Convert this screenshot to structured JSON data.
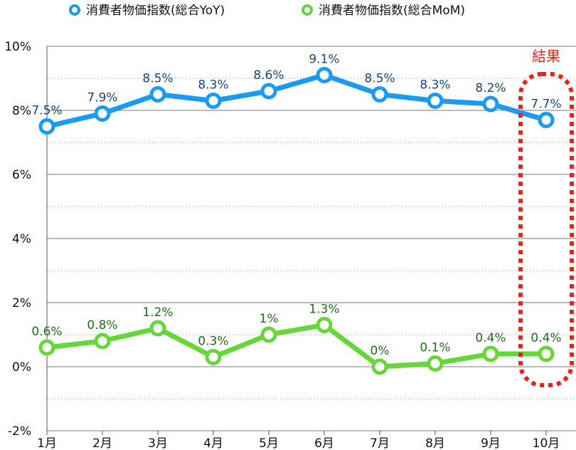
{
  "chart_data": {
    "type": "line",
    "categories": [
      "1月",
      "2月",
      "3月",
      "4月",
      "5月",
      "6月",
      "7月",
      "8月",
      "9月",
      "10月"
    ],
    "series": [
      {
        "name": "消費者物価指数(総合YoY)",
        "color": "#1a9af0",
        "label_color": "#17457a",
        "values": [
          7.5,
          7.9,
          8.5,
          8.3,
          8.6,
          9.1,
          8.5,
          8.3,
          8.2,
          7.7
        ],
        "labels": [
          "7.5%",
          "7.9%",
          "8.5%",
          "8.3%",
          "8.6%",
          "9.1%",
          "8.5%",
          "8.3%",
          "8.2%",
          "7.7%"
        ]
      },
      {
        "name": "消費者物価指数(総合MoM)",
        "color": "#66d63a",
        "label_color": "#1f6e1a",
        "values": [
          0.6,
          0.8,
          1.2,
          0.3,
          1.0,
          1.3,
          0.0,
          0.1,
          0.4,
          0.4
        ],
        "labels": [
          "0.6%",
          "0.8%",
          "1.2%",
          "0.3%",
          "1%",
          "1.3%",
          "0%",
          "0.1%",
          "0.4%",
          "0.4%"
        ]
      }
    ],
    "ylim": [
      -2,
      10
    ],
    "yticks": [
      "-2%",
      "0%",
      "2%",
      "4%",
      "6%",
      "8%",
      "10%"
    ],
    "grid": true,
    "legend": "top",
    "annotation": {
      "text": "結果",
      "color": "#e8231b",
      "highlight_category": "10月"
    }
  }
}
